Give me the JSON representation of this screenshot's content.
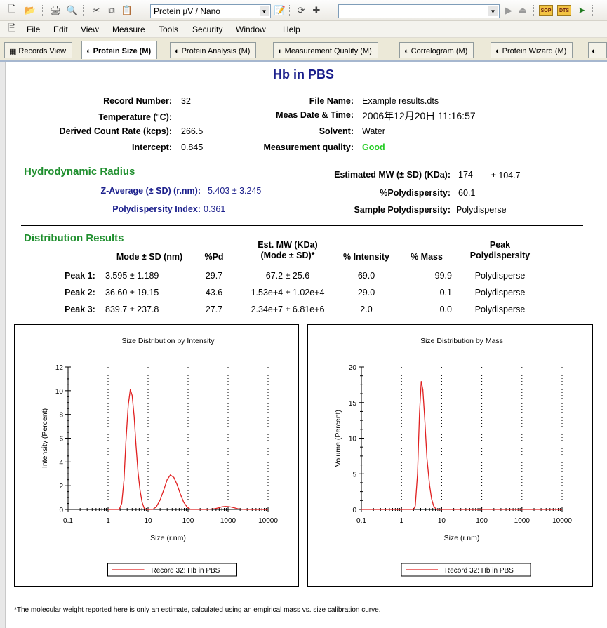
{
  "toolbar": {
    "protocol_combo": "Protein µV / Nano",
    "badges": [
      "SOP",
      "DTS"
    ]
  },
  "menu": [
    "File",
    "Edit",
    "View",
    "Measure",
    "Tools",
    "Security",
    "Window",
    "Help"
  ],
  "tabs": [
    {
      "label": "Records View",
      "active": false
    },
    {
      "label": "Protein Size (M)",
      "active": true
    },
    {
      "label": "Protein Analysis (M)",
      "active": false
    },
    {
      "label": "Measurement Quality (M)",
      "active": false
    },
    {
      "label": "Correlogram (M)",
      "active": false
    },
    {
      "label": "Protein Wizard (M)",
      "active": false
    }
  ],
  "report": {
    "title": "Hb in PBS",
    "record_number_label": "Record Number:",
    "record_number": "32",
    "temperature_label": "Temperature (°C):",
    "temperature": "",
    "count_rate_label": "Derived Count Rate (kcps):",
    "count_rate": "266.5",
    "intercept_label": "Intercept:",
    "intercept": "0.845",
    "file_name_label": "File Name:",
    "file_name": "Example results.dts",
    "meas_date_label": "Meas Date & Time:",
    "meas_date": "2006年12月20日 11:16:57",
    "solvent_label": "Solvent:",
    "solvent": "Water",
    "quality_label": "Measurement quality:",
    "quality": "Good"
  },
  "hydrodynamic": {
    "title": "Hydrodynamic Radius",
    "zavg_label": "Z-Average (± SD) (r.nm):",
    "zavg": "5.403  ±  3.245",
    "pdi_label": "Polydispersity Index:",
    "pdi": "0.361",
    "mw_label": "Estimated MW (± SD) (KDa):",
    "mw": "174",
    "mw_sd": "± 104.7",
    "poly_label": "%Polydispersity:",
    "poly": "60.1",
    "sample_poly_label": "Sample Polydispersity:",
    "sample_poly": "Polydisperse"
  },
  "distribution": {
    "title": "Distribution Results",
    "headers": {
      "mode": "Mode ± SD (nm)",
      "pd": "%Pd",
      "mw_line1": "Est. MW (KDa)",
      "mw_line2": "(Mode ± SD)*",
      "intensity": "% Intensity",
      "mass": "% Mass",
      "peak_line1": "Peak",
      "peak_line2": "Polydispersity"
    },
    "rows": [
      {
        "label": "Peak 1:",
        "mode": "3.595  ±  1.189",
        "pd": "29.7",
        "mw": "67.2 ±  25.6",
        "intensity": "69.0",
        "mass": "99.9",
        "poly": "Polydisperse"
      },
      {
        "label": "Peak 2:",
        "mode": "36.60  ±  19.15",
        "pd": "43.6",
        "mw": "1.53e+4 ±  1.02e+4",
        "intensity": "29.0",
        "mass": "0.1",
        "poly": "Polydisperse"
      },
      {
        "label": "Peak 3:",
        "mode": "839.7  ±  237.8",
        "pd": "27.7",
        "mw": "2.34e+7 ±  6.81e+6",
        "intensity": "2.0",
        "mass": "0.0",
        "poly": "Polydisperse"
      }
    ]
  },
  "chart_data": [
    {
      "type": "line",
      "title": "Size Distribution by Intensity",
      "xlabel": "Size (r.nm)",
      "ylabel": "Intensity (Percent)",
      "xscale": "log",
      "xlim": [
        0.1,
        10000
      ],
      "ylim": [
        0,
        12
      ],
      "xticks": [
        "0.1",
        "1",
        "10",
        "100",
        "1000",
        "10000"
      ],
      "yticks": [
        "0",
        "2",
        "4",
        "6",
        "8",
        "10",
        "12"
      ],
      "grid": "vertical dotted",
      "legend": "bottom",
      "color": "#e02020",
      "series": [
        {
          "name": "Record 32: Hb in PBS",
          "x": [
            1.0,
            1.5,
            1.9,
            2.2,
            2.5,
            2.8,
            3.2,
            3.6,
            4.0,
            4.5,
            5.0,
            5.6,
            6.3,
            7.1,
            8.0,
            9.0,
            10.0,
            13,
            16,
            20,
            25,
            30,
            36,
            44,
            53,
            64,
            78,
            95,
            116,
            150,
            300,
            450,
            600,
            700,
            840,
            1000,
            1200,
            1500,
            1800,
            2500,
            10000
          ],
          "y": [
            0,
            0,
            0,
            0.5,
            2.5,
            5.8,
            8.8,
            10.1,
            9.6,
            7.8,
            5.4,
            3.2,
            1.6,
            0.6,
            0.1,
            0,
            0,
            0,
            0.2,
            0.8,
            1.7,
            2.5,
            2.9,
            2.7,
            2.1,
            1.3,
            0.6,
            0.2,
            0,
            0,
            0,
            0.05,
            0.15,
            0.22,
            0.25,
            0.24,
            0.2,
            0.12,
            0.05,
            0,
            0
          ]
        }
      ]
    },
    {
      "type": "line",
      "title": "Size Distribution by Mass",
      "xlabel": "Size (r.nm)",
      "ylabel": "Volume (Percent)",
      "xscale": "log",
      "xlim": [
        0.1,
        10000
      ],
      "ylim": [
        0,
        20
      ],
      "xticks": [
        "0.1",
        "1",
        "10",
        "100",
        "1000",
        "10000"
      ],
      "yticks": [
        "0",
        "5",
        "10",
        "15",
        "20"
      ],
      "grid": "vertical dotted",
      "legend": "bottom",
      "color": "#e02020",
      "series": [
        {
          "name": "Record 32: Hb in PBS",
          "x": [
            0.1,
            1.5,
            2.0,
            2.2,
            2.5,
            2.8,
            3.1,
            3.4,
            3.8,
            4.3,
            5.0,
            5.6,
            6.3,
            7.1,
            8.0,
            9.0,
            10000
          ],
          "y": [
            0,
            0,
            0,
            0.5,
            5.0,
            13.5,
            18.0,
            16.8,
            12.5,
            7.2,
            3.4,
            1.5,
            0.5,
            0.1,
            0,
            0,
            0
          ]
        }
      ]
    }
  ],
  "footnote": "*The molecular weight reported here is only an estimate, calculated using an empirical mass vs. size calibration curve."
}
